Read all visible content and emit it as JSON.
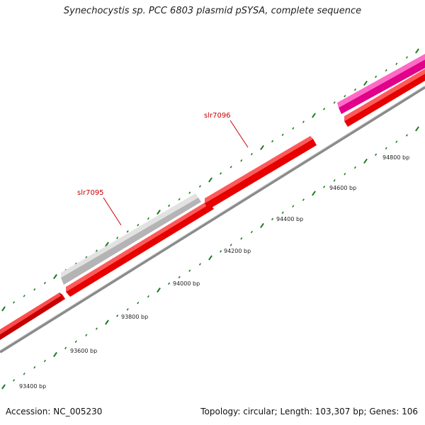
{
  "header": {
    "title": "Synechocystis sp. PCC 6803 plasmid pSYSA, complete sequence"
  },
  "footer": {
    "accession": "Accession: NC_005230",
    "summary": "Topology: circular; Length: 103,307 bp; Genes: 106"
  },
  "map": {
    "topology": "circular",
    "length_bp": 103307,
    "gene_count": 106,
    "colors": {
      "forward_gene": "#ff1a1a",
      "reverse_gene": "#c8c8c8",
      "other_feature": "#ff2ea6",
      "backbone": "#8a8a8a",
      "ticks": "#1f7a1f",
      "gene_label": "#cc0000"
    },
    "ruler_labels": [
      {
        "bp": 93400,
        "text": "93400 bp"
      },
      {
        "bp": 93600,
        "text": "93600 bp"
      },
      {
        "bp": 93800,
        "text": "93800 bp"
      },
      {
        "bp": 94000,
        "text": "94000 bp"
      },
      {
        "bp": 94200,
        "text": "94200 bp"
      },
      {
        "bp": 94400,
        "text": "94400 bp"
      },
      {
        "bp": 94600,
        "text": "94600 bp"
      },
      {
        "bp": 94800,
        "text": "94800 bp"
      }
    ],
    "gene_labels": [
      {
        "name": "slr7095"
      },
      {
        "name": "slr7096"
      }
    ]
  }
}
